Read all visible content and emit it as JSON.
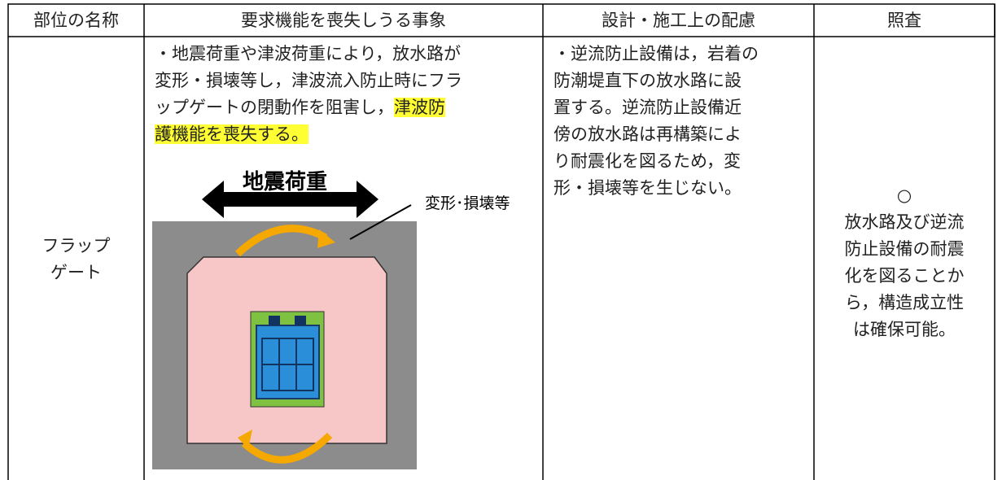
{
  "table": {
    "header": [
      "部位の名称",
      "要求機能を喪失しうる事象",
      "設計・施工上の配慮",
      "照査"
    ],
    "rows": [
      {
        "part_lines": [
          "フラップ",
          "ゲート"
        ],
        "event": {
          "text_lines": [
            "・地震荷重や津波荷重により，放水路が",
            "変形・損壊等し，津波流入防止時にフラ",
            "ップゲートの閉動作を阻害し，"
          ],
          "highlight_lines": [
            "津波防",
            "護機能を喪失する。"
          ],
          "figure": {
            "load_label": "地震荷重",
            "damage_label": "変形･損壊等"
          }
        },
        "design_lines": [
          "・逆流防止設備は，岩着の",
          "防潮堤直下の放水路に設",
          "置する。逆流防止設備近",
          "傍の放水路は再構築によ",
          "り耐震化を図るため，変",
          "形・損壊等を生じない。"
        ],
        "check_lines": [
          "○",
          "放水路及び逆流",
          "防止設備の耐震",
          "化を図ることか",
          "ら，構造成立性",
          "は確保可能。"
        ]
      }
    ]
  }
}
